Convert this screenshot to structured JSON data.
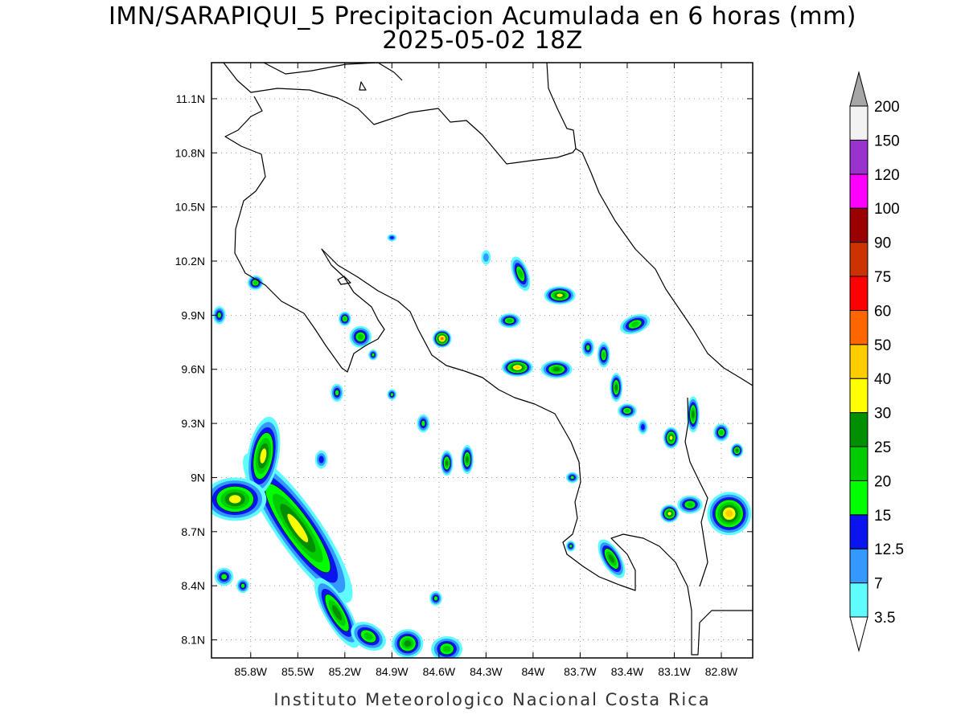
{
  "title": "IMN/SARAPIQUI_5 Precipitacion Acumulada en 6 horas (mm)",
  "subtitle": "2025-05-02 18Z",
  "footer": "Instituto Meteorologico Nacional Costa Rica",
  "axes": {
    "lon_range": [
      -86.05,
      -82.6
    ],
    "lat_range": [
      8.0,
      11.3
    ],
    "lat_ticks": [
      "11.1N",
      "10.8N",
      "10.5N",
      "10.2N",
      "9.9N",
      "9.6N",
      "9.3N",
      "9N",
      "8.7N",
      "8.4N",
      "8.1N"
    ],
    "lat_values": [
      11.1,
      10.8,
      10.5,
      10.2,
      9.9,
      9.6,
      9.3,
      9.0,
      8.7,
      8.4,
      8.1
    ],
    "lon_ticks": [
      "85.8W",
      "85.5W",
      "85.2W",
      "84.9W",
      "84.6W",
      "84.3W",
      "84W",
      "83.7W",
      "83.4W",
      "83.1W",
      "82.8W"
    ],
    "lon_values": [
      -85.8,
      -85.5,
      -85.2,
      -84.9,
      -84.6,
      -84.3,
      -84.0,
      -83.7,
      -83.4,
      -83.1,
      -82.8
    ],
    "grid": true
  },
  "legend": {
    "levels": [
      "3.5",
      "7",
      "12.5",
      "15",
      "20",
      "25",
      "30",
      "40",
      "50",
      "60",
      "75",
      "90",
      "100",
      "120",
      "150",
      "200"
    ],
    "colors": [
      "#5ffcff",
      "#3399ff",
      "#0a14ee",
      "#00ff00",
      "#00cc00",
      "#008f00",
      "#ffff00",
      "#ffcc00",
      "#ff6600",
      "#ff0000",
      "#cc3300",
      "#990000",
      "#ff00ff",
      "#9933cc",
      "#f2f2f2",
      "#a6a6a6"
    ]
  },
  "precip_cells": [
    {
      "lon": -85.5,
      "lat": 8.72,
      "rx": 0.14,
      "ry": 0.5,
      "rot": -35,
      "max": 6
    },
    {
      "lon": -85.72,
      "lat": 9.12,
      "rx": 0.1,
      "ry": 0.22,
      "rot": 10,
      "max": 6
    },
    {
      "lon": -85.9,
      "lat": 8.88,
      "rx": 0.2,
      "ry": 0.12,
      "rot": 0,
      "max": 6
    },
    {
      "lon": -85.25,
      "lat": 8.25,
      "rx": 0.08,
      "ry": 0.22,
      "rot": -30,
      "max": 5
    },
    {
      "lon": -85.05,
      "lat": 8.12,
      "rx": 0.12,
      "ry": 0.07,
      "rot": 30,
      "max": 4
    },
    {
      "lon": -84.8,
      "lat": 8.08,
      "rx": 0.1,
      "ry": 0.08,
      "rot": 0,
      "max": 5
    },
    {
      "lon": -84.55,
      "lat": 8.05,
      "rx": 0.1,
      "ry": 0.07,
      "rot": 0,
      "max": 4
    },
    {
      "lon": -84.58,
      "lat": 9.77,
      "rx": 0.06,
      "ry": 0.05,
      "rot": 0,
      "max": 8
    },
    {
      "lon": -84.1,
      "lat": 9.61,
      "rx": 0.1,
      "ry": 0.05,
      "rot": 0,
      "max": 7
    },
    {
      "lon": -83.85,
      "lat": 9.6,
      "rx": 0.1,
      "ry": 0.05,
      "rot": 0,
      "max": 5
    },
    {
      "lon": -83.83,
      "lat": 10.01,
      "rx": 0.1,
      "ry": 0.05,
      "rot": 0,
      "max": 6
    },
    {
      "lon": -84.08,
      "lat": 10.13,
      "rx": 0.05,
      "ry": 0.1,
      "rot": -20,
      "max": 4
    },
    {
      "lon": -84.15,
      "lat": 9.87,
      "rx": 0.07,
      "ry": 0.04,
      "rot": 0,
      "max": 4
    },
    {
      "lon": -83.55,
      "lat": 9.68,
      "rx": 0.04,
      "ry": 0.07,
      "rot": 0,
      "max": 4
    },
    {
      "lon": -83.47,
      "lat": 9.5,
      "rx": 0.04,
      "ry": 0.08,
      "rot": 0,
      "max": 5
    },
    {
      "lon": -83.35,
      "lat": 9.85,
      "rx": 0.1,
      "ry": 0.05,
      "rot": -20,
      "max": 4
    },
    {
      "lon": -83.4,
      "lat": 9.37,
      "rx": 0.06,
      "ry": 0.04,
      "rot": 0,
      "max": 4
    },
    {
      "lon": -83.12,
      "lat": 9.22,
      "rx": 0.05,
      "ry": 0.06,
      "rot": 0,
      "max": 6
    },
    {
      "lon": -82.98,
      "lat": 9.35,
      "rx": 0.04,
      "ry": 0.1,
      "rot": 0,
      "max": 5
    },
    {
      "lon": -82.75,
      "lat": 8.8,
      "rx": 0.14,
      "ry": 0.12,
      "rot": 0,
      "max": 7
    },
    {
      "lon": -83.13,
      "lat": 8.8,
      "rx": 0.06,
      "ry": 0.05,
      "rot": 0,
      "max": 6
    },
    {
      "lon": -83.5,
      "lat": 8.55,
      "rx": 0.06,
      "ry": 0.12,
      "rot": -30,
      "max": 5
    },
    {
      "lon": -82.8,
      "lat": 9.25,
      "rx": 0.05,
      "ry": 0.05,
      "rot": 0,
      "max": 4
    },
    {
      "lon": -82.7,
      "lat": 9.15,
      "rx": 0.04,
      "ry": 0.04,
      "rot": 0,
      "max": 5
    },
    {
      "lon": -84.55,
      "lat": 9.08,
      "rx": 0.04,
      "ry": 0.07,
      "rot": 0,
      "max": 5
    },
    {
      "lon": -84.7,
      "lat": 9.3,
      "rx": 0.04,
      "ry": 0.05,
      "rot": 0,
      "max": 3
    },
    {
      "lon": -85.1,
      "lat": 9.78,
      "rx": 0.07,
      "ry": 0.06,
      "rot": 0,
      "max": 4
    },
    {
      "lon": -85.2,
      "lat": 9.88,
      "rx": 0.04,
      "ry": 0.04,
      "rot": 0,
      "max": 4
    },
    {
      "lon": -85.77,
      "lat": 10.08,
      "rx": 0.05,
      "ry": 0.04,
      "rot": 0,
      "max": 4
    },
    {
      "lon": -86.0,
      "lat": 9.9,
      "rx": 0.04,
      "ry": 0.05,
      "rot": 0,
      "max": 3
    },
    {
      "lon": -85.25,
      "lat": 9.47,
      "rx": 0.04,
      "ry": 0.05,
      "rot": 0,
      "max": 3
    },
    {
      "lon": -85.02,
      "lat": 9.68,
      "rx": 0.03,
      "ry": 0.03,
      "rot": 0,
      "max": 3
    },
    {
      "lon": -84.62,
      "lat": 8.33,
      "rx": 0.04,
      "ry": 0.04,
      "rot": 0,
      "max": 3
    },
    {
      "lon": -83.75,
      "lat": 9.0,
      "rx": 0.04,
      "ry": 0.03,
      "rot": 0,
      "max": 3
    },
    {
      "lon": -83.76,
      "lat": 8.62,
      "rx": 0.03,
      "ry": 0.03,
      "rot": 0,
      "max": 3
    },
    {
      "lon": -85.97,
      "lat": 8.45,
      "rx": 0.06,
      "ry": 0.05,
      "rot": 0,
      "max": 3
    },
    {
      "lon": -85.85,
      "lat": 8.4,
      "rx": 0.04,
      "ry": 0.04,
      "rot": 0,
      "max": 3
    },
    {
      "lon": -83.65,
      "lat": 9.72,
      "rx": 0.04,
      "ry": 0.05,
      "rot": 0,
      "max": 3
    },
    {
      "lon": -83.0,
      "lat": 8.85,
      "rx": 0.08,
      "ry": 0.05,
      "rot": 0,
      "max": 4
    },
    {
      "lon": -83.3,
      "lat": 9.28,
      "rx": 0.03,
      "ry": 0.04,
      "rot": 0,
      "max": 2
    },
    {
      "lon": -84.3,
      "lat": 10.22,
      "rx": 0.03,
      "ry": 0.04,
      "rot": 0,
      "max": 1
    },
    {
      "lon": -84.9,
      "lat": 10.33,
      "rx": 0.03,
      "ry": 0.02,
      "rot": 0,
      "max": 2
    },
    {
      "lon": -84.9,
      "lat": 9.46,
      "rx": 0.03,
      "ry": 0.03,
      "rot": 0,
      "max": 3
    },
    {
      "lon": -85.35,
      "lat": 9.1,
      "rx": 0.04,
      "ry": 0.05,
      "rot": 0,
      "max": 2
    },
    {
      "lon": -84.42,
      "lat": 9.1,
      "rx": 0.04,
      "ry": 0.08,
      "rot": 0,
      "max": 5
    }
  ]
}
